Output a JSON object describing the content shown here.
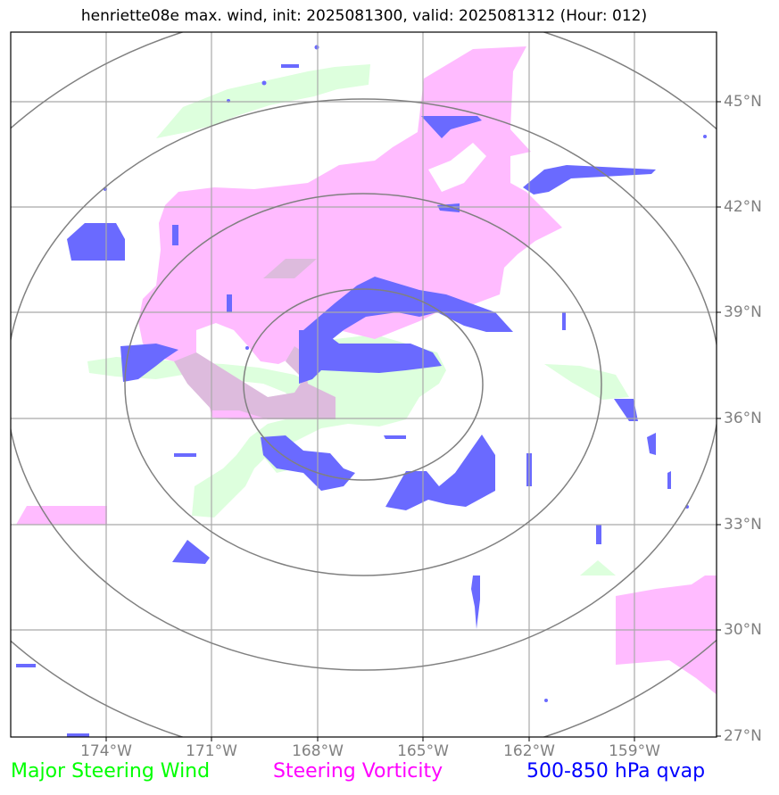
{
  "title": "henriette08e max. wind, init: 2025081300, valid: 2025081312 (Hour: 012)",
  "axes": {
    "lon_labels": [
      "174°W",
      "171°W",
      "168°W",
      "165°W",
      "162°W",
      "159°W"
    ],
    "lat_labels": [
      "45°N",
      "42°N",
      "39°N",
      "36°N",
      "33°N",
      "30°N",
      "27°N"
    ]
  },
  "legend": [
    {
      "label": "Major Steering Wind",
      "color": "#00ff00"
    },
    {
      "label": "Steering Vorticity",
      "color": "#ff00ff"
    },
    {
      "label": "500-850 hPa qvap",
      "color": "#0000ff"
    }
  ],
  "layer_colors": {
    "wind": "#ddffdd",
    "vorticity": "#ffbbff",
    "qvap": "#6a6aff",
    "grid": "#a9a9a9",
    "range_rings": "#808080"
  }
}
